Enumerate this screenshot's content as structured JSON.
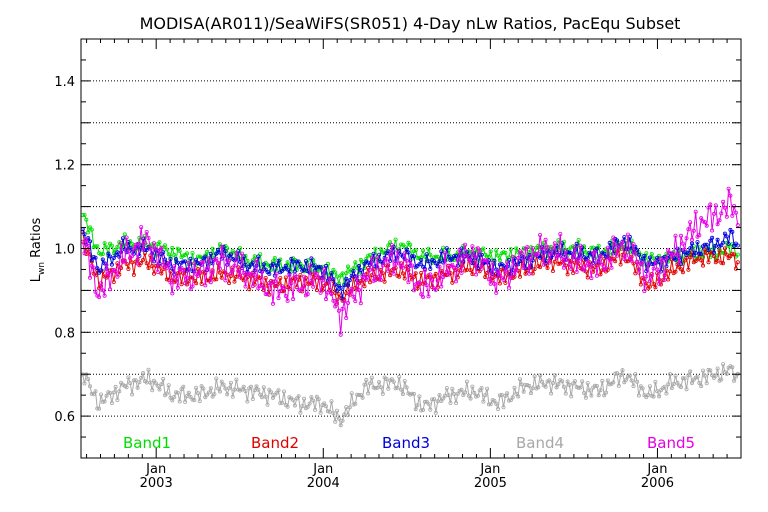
{
  "chart_data": {
    "type": "line",
    "title": "MODISA(AR011)/SeaWiFS(SR051) 4-Day nLw Ratios, PacEqu Subset",
    "ylabel": "L",
    "ylabel_sub": "wn",
    "ylabel_suffix": " Ratios",
    "xlabel": "",
    "ylim": [
      0.5,
      1.5
    ],
    "xlim": [
      2002.55,
      2006.5
    ],
    "yticks": [
      "0.6",
      "0.8",
      "1.0",
      "1.2",
      "1.4"
    ],
    "grid": "horizontal dotted",
    "xtick_month": "Jan",
    "xtick_labels": [
      {
        "year": "2003",
        "x": 2003.0
      },
      {
        "year": "2004",
        "x": 2004.0
      },
      {
        "year": "2005",
        "x": 2005.0
      },
      {
        "year": "2006",
        "x": 2006.0
      }
    ],
    "legend_position": "bottom inside plot",
    "series": [
      {
        "name": "Band1",
        "color": "#00dd00",
        "points": [
          [
            2002.56,
            1.08
          ],
          [
            2002.66,
            0.99
          ],
          [
            2002.8,
            1.01
          ],
          [
            2002.95,
            1.01
          ],
          [
            2003.1,
            0.99
          ],
          [
            2003.25,
            0.97
          ],
          [
            2003.4,
            1.0
          ],
          [
            2003.55,
            0.97
          ],
          [
            2003.7,
            0.96
          ],
          [
            2003.85,
            0.96
          ],
          [
            2004.0,
            0.95
          ],
          [
            2004.1,
            0.93
          ],
          [
            2004.25,
            0.97
          ],
          [
            2004.45,
            1.01
          ],
          [
            2004.6,
            0.98
          ],
          [
            2004.75,
            0.98
          ],
          [
            2004.9,
            0.99
          ],
          [
            2005.05,
            0.98
          ],
          [
            2005.2,
            0.99
          ],
          [
            2005.35,
            1.0
          ],
          [
            2005.5,
            1.0
          ],
          [
            2005.65,
            0.99
          ],
          [
            2005.8,
            1.01
          ],
          [
            2005.95,
            0.97
          ],
          [
            2006.1,
            0.98
          ],
          [
            2006.25,
            0.99
          ],
          [
            2006.35,
            0.99
          ],
          [
            2006.45,
            1.0
          ],
          [
            2006.49,
            0.99
          ]
        ]
      },
      {
        "name": "Band2",
        "color": "#e00000",
        "points": [
          [
            2002.56,
            1.02
          ],
          [
            2002.66,
            0.92
          ],
          [
            2002.8,
            0.96
          ],
          [
            2002.95,
            0.97
          ],
          [
            2003.1,
            0.93
          ],
          [
            2003.25,
            0.93
          ],
          [
            2003.4,
            0.94
          ],
          [
            2003.55,
            0.93
          ],
          [
            2003.7,
            0.91
          ],
          [
            2003.85,
            0.92
          ],
          [
            2004.0,
            0.92
          ],
          [
            2004.1,
            0.88
          ],
          [
            2004.25,
            0.93
          ],
          [
            2004.45,
            0.95
          ],
          [
            2004.6,
            0.92
          ],
          [
            2004.75,
            0.94
          ],
          [
            2004.9,
            0.96
          ],
          [
            2005.05,
            0.93
          ],
          [
            2005.2,
            0.95
          ],
          [
            2005.35,
            0.97
          ],
          [
            2005.5,
            0.96
          ],
          [
            2005.65,
            0.95
          ],
          [
            2005.8,
            0.99
          ],
          [
            2005.95,
            0.91
          ],
          [
            2006.1,
            0.95
          ],
          [
            2006.25,
            0.98
          ],
          [
            2006.35,
            0.98
          ],
          [
            2006.45,
            0.98
          ],
          [
            2006.49,
            0.97
          ]
        ]
      },
      {
        "name": "Band3",
        "color": "#0000dd",
        "points": [
          [
            2002.56,
            1.04
          ],
          [
            2002.66,
            0.95
          ],
          [
            2002.8,
            1.0
          ],
          [
            2002.95,
            1.0
          ],
          [
            2003.1,
            0.96
          ],
          [
            2003.25,
            0.96
          ],
          [
            2003.4,
            0.99
          ],
          [
            2003.55,
            0.96
          ],
          [
            2003.7,
            0.95
          ],
          [
            2003.85,
            0.96
          ],
          [
            2004.0,
            0.95
          ],
          [
            2004.1,
            0.9
          ],
          [
            2004.25,
            0.96
          ],
          [
            2004.45,
            0.99
          ],
          [
            2004.6,
            0.96
          ],
          [
            2004.75,
            0.98
          ],
          [
            2004.9,
            0.98
          ],
          [
            2005.05,
            0.95
          ],
          [
            2005.2,
            0.97
          ],
          [
            2005.35,
            0.99
          ],
          [
            2005.5,
            0.99
          ],
          [
            2005.65,
            0.98
          ],
          [
            2005.8,
            1.02
          ],
          [
            2005.95,
            0.96
          ],
          [
            2006.1,
            0.98
          ],
          [
            2006.25,
            1.0
          ],
          [
            2006.35,
            1.01
          ],
          [
            2006.45,
            1.03
          ],
          [
            2006.49,
            1.0
          ]
        ]
      },
      {
        "name": "Band4",
        "color": "#a8a8a8",
        "points": [
          [
            2002.56,
            0.7
          ],
          [
            2002.66,
            0.63
          ],
          [
            2002.8,
            0.67
          ],
          [
            2002.95,
            0.69
          ],
          [
            2003.1,
            0.65
          ],
          [
            2003.25,
            0.65
          ],
          [
            2003.4,
            0.67
          ],
          [
            2003.55,
            0.66
          ],
          [
            2003.7,
            0.65
          ],
          [
            2003.85,
            0.63
          ],
          [
            2004.0,
            0.63
          ],
          [
            2004.1,
            0.59
          ],
          [
            2004.25,
            0.67
          ],
          [
            2004.45,
            0.68
          ],
          [
            2004.6,
            0.62
          ],
          [
            2004.75,
            0.65
          ],
          [
            2004.9,
            0.66
          ],
          [
            2005.05,
            0.63
          ],
          [
            2005.2,
            0.67
          ],
          [
            2005.35,
            0.68
          ],
          [
            2005.5,
            0.67
          ],
          [
            2005.65,
            0.66
          ],
          [
            2005.8,
            0.7
          ],
          [
            2005.95,
            0.65
          ],
          [
            2006.1,
            0.68
          ],
          [
            2006.25,
            0.69
          ],
          [
            2006.35,
            0.7
          ],
          [
            2006.45,
            0.71
          ],
          [
            2006.49,
            0.68
          ]
        ]
      },
      {
        "name": "Band5",
        "color": "#e600e6",
        "points": [
          [
            2002.56,
            1.02
          ],
          [
            2002.66,
            0.89
          ],
          [
            2002.8,
            0.98
          ],
          [
            2002.95,
            1.02
          ],
          [
            2003.1,
            0.93
          ],
          [
            2003.25,
            0.94
          ],
          [
            2003.4,
            0.97
          ],
          [
            2003.55,
            0.94
          ],
          [
            2003.7,
            0.9
          ],
          [
            2003.85,
            0.91
          ],
          [
            2004.0,
            0.93
          ],
          [
            2004.1,
            0.84
          ],
          [
            2004.25,
            0.93
          ],
          [
            2004.45,
            0.98
          ],
          [
            2004.6,
            0.9
          ],
          [
            2004.75,
            0.95
          ],
          [
            2004.9,
            0.99
          ],
          [
            2005.05,
            0.92
          ],
          [
            2005.2,
            0.98
          ],
          [
            2005.35,
            1.0
          ],
          [
            2005.5,
            0.97
          ],
          [
            2005.65,
            0.96
          ],
          [
            2005.8,
            1.01
          ],
          [
            2005.95,
            0.93
          ],
          [
            2006.1,
            0.99
          ],
          [
            2006.25,
            1.06
          ],
          [
            2006.35,
            1.08
          ],
          [
            2006.45,
            1.11
          ],
          [
            2006.49,
            1.05
          ]
        ]
      }
    ]
  }
}
